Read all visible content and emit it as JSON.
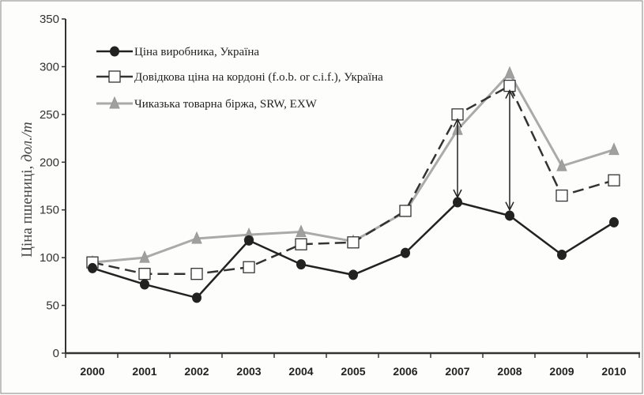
{
  "chart_data": {
    "type": "line",
    "title": "",
    "xlabel": "",
    "ylabel": "Ціна пшениці, ",
    "ylabel_unit": "дол./т",
    "ylim": [
      0,
      350
    ],
    "yticks": [
      "0",
      "50",
      "100",
      "150",
      "200",
      "250",
      "300",
      "350"
    ],
    "categories": [
      "2000",
      "2001",
      "2002",
      "2003",
      "2004",
      "2005",
      "2006",
      "2007",
      "2008",
      "2009",
      "2010"
    ],
    "grid": false,
    "legend_position": "top-left",
    "series": [
      {
        "name": "Ціна виробника, Україна",
        "style": "solid-black-circle",
        "color": "#222222",
        "values": [
          89,
          72,
          58,
          118,
          93,
          82,
          105,
          158,
          144,
          103,
          137
        ]
      },
      {
        "name": "Довідкова ціна на кордоні (f.o.b. or c.i.f.), Україна",
        "style": "dashed-open-square",
        "color": "#333333",
        "values": [
          95,
          83,
          83,
          90,
          114,
          116,
          149,
          250,
          280,
          165,
          181
        ]
      },
      {
        "name": "Чиказька товарна біржа, SRW, EXW",
        "style": "grey-triangle",
        "color": "#a8a8a8",
        "values": [
          95,
          100,
          120,
          124,
          127,
          117,
          148,
          234,
          293,
          196,
          213
        ]
      }
    ],
    "annotations": [
      {
        "type": "double-arrow",
        "x": "2007",
        "from": 245,
        "to": 163
      },
      {
        "type": "double-arrow",
        "x": "2008",
        "from": 275,
        "to": 150
      }
    ]
  }
}
